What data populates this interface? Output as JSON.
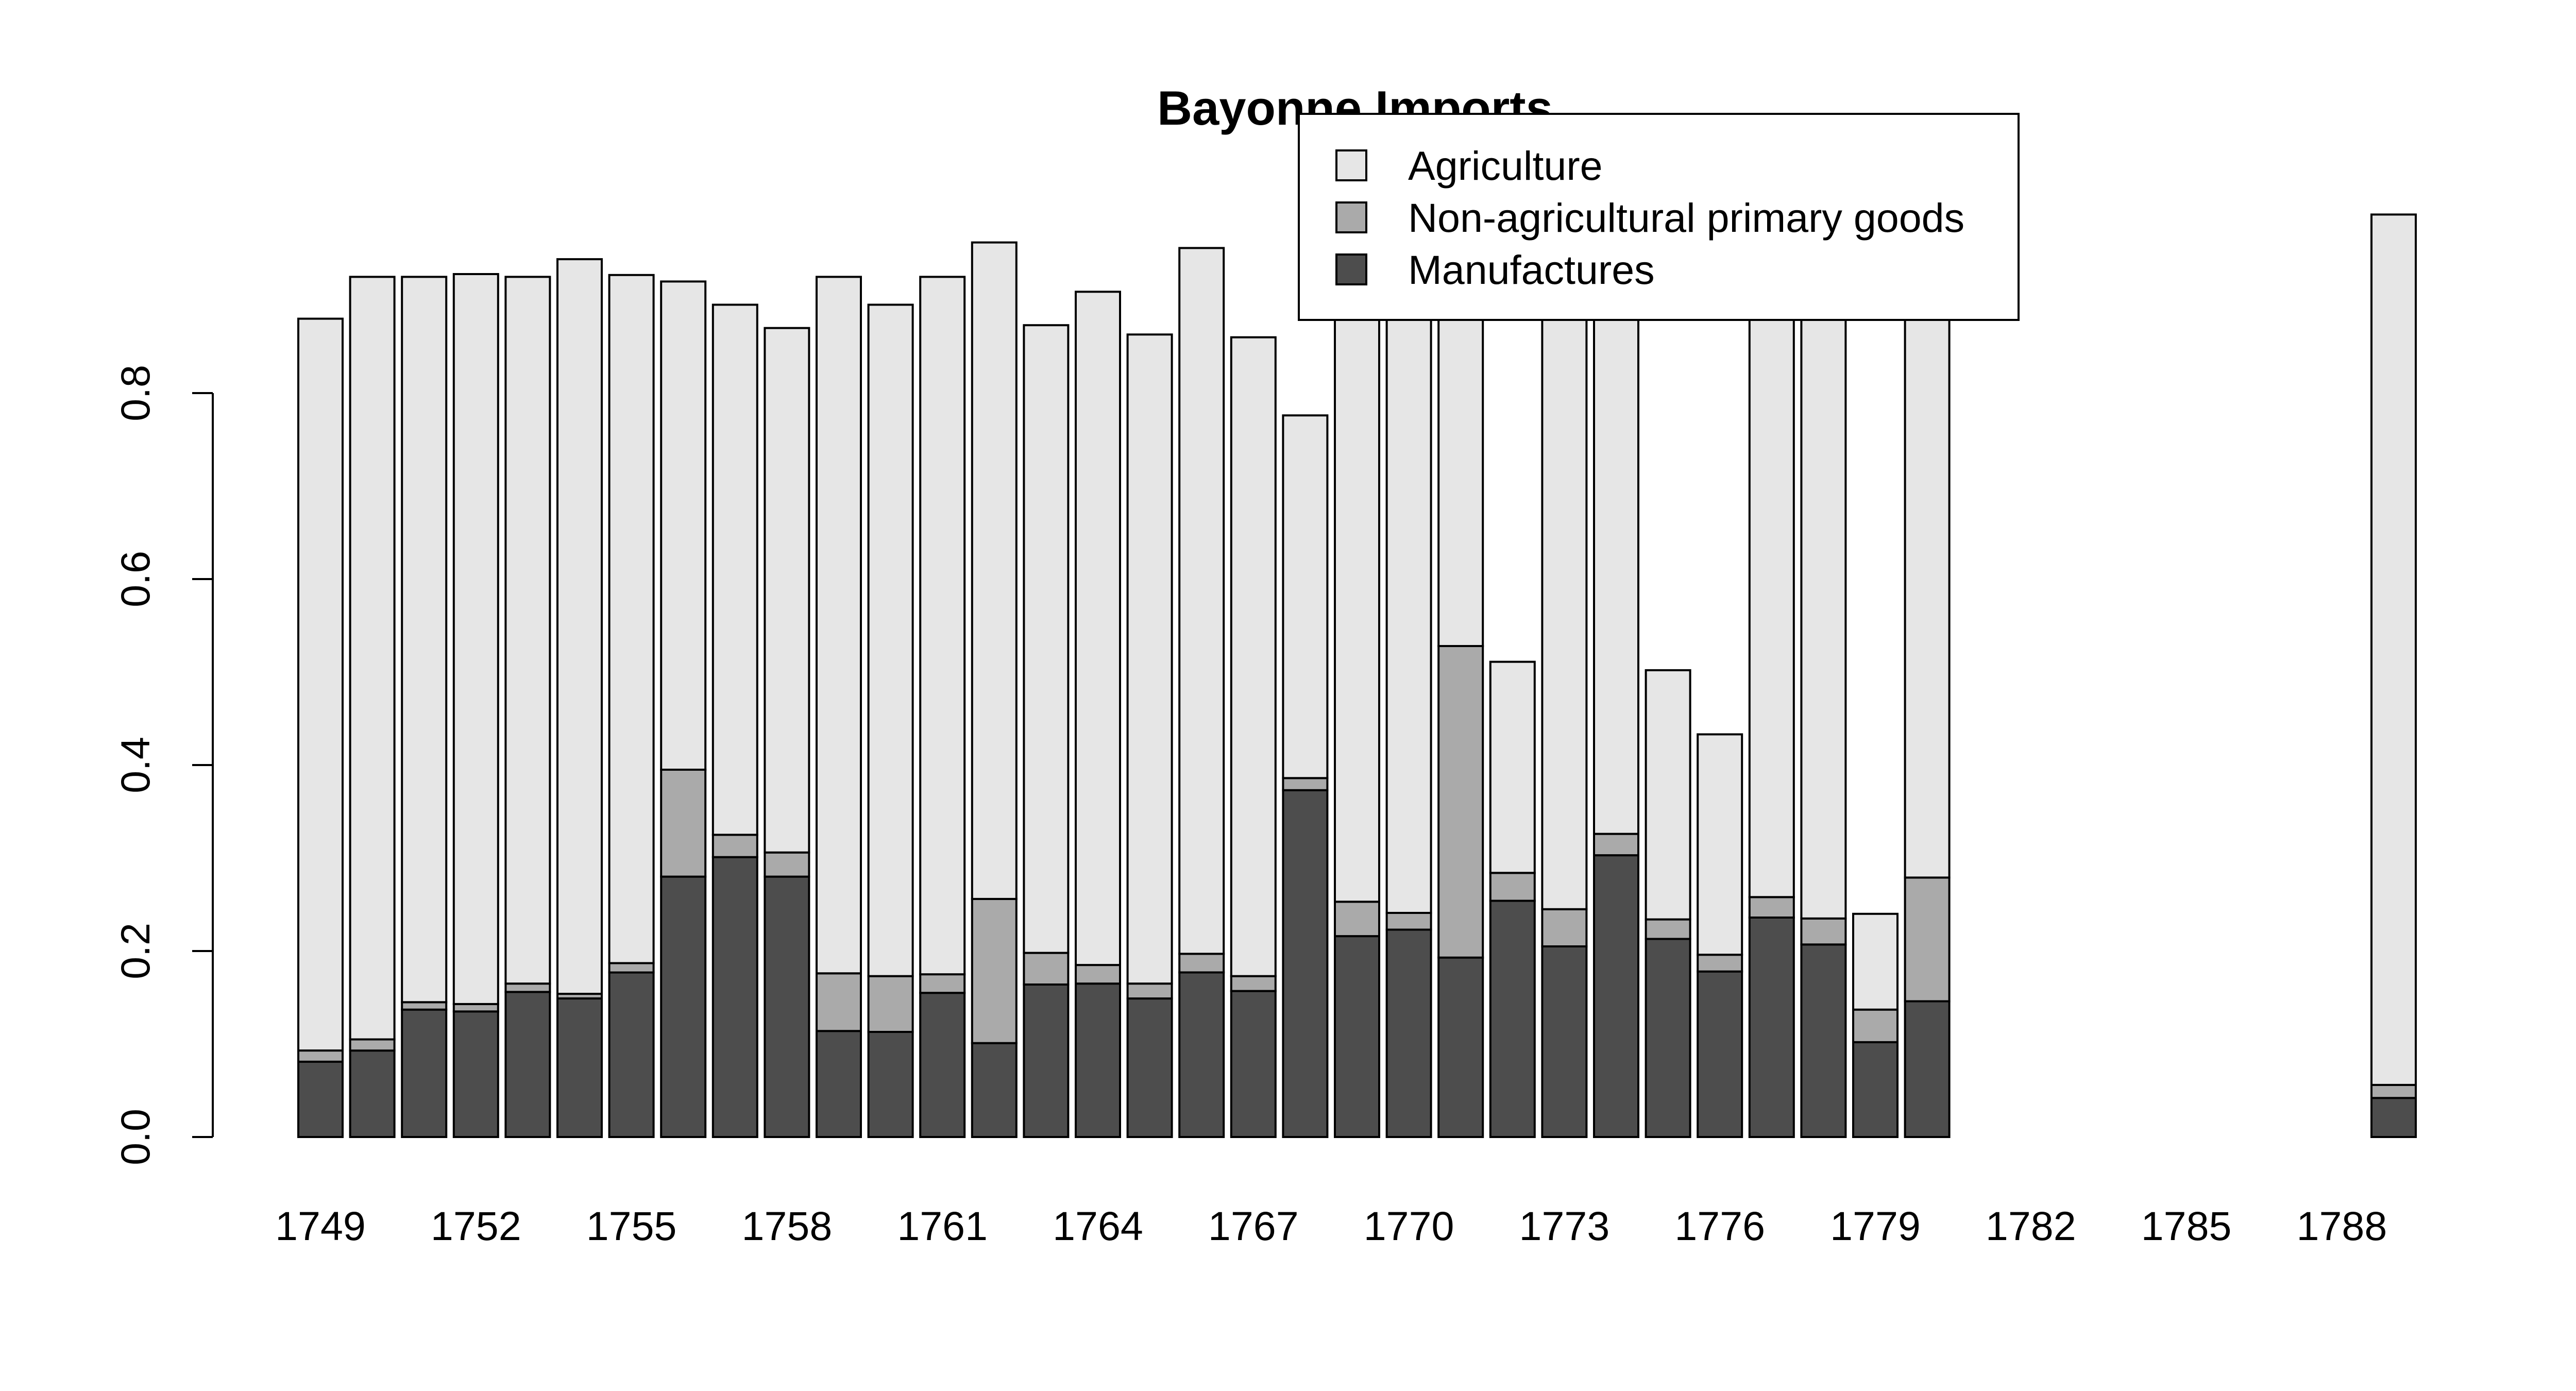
{
  "chart_data": {
    "type": "bar",
    "stacked": true,
    "title": "Bayonne Imports",
    "xlabel": "",
    "ylabel": "",
    "ylim": [
      0,
      1
    ],
    "y_ticks": [
      0.0,
      0.2,
      0.4,
      0.6,
      0.8
    ],
    "y_tick_labels": [
      "0.0",
      "0.2",
      "0.4",
      "0.6",
      "0.8"
    ],
    "x_tick_labels": [
      "1749",
      "1752",
      "1755",
      "1758",
      "1761",
      "1764",
      "1767",
      "1770",
      "1773",
      "1776",
      "1779",
      "1782",
      "1785",
      "1788"
    ],
    "categories": [
      1749,
      1750,
      1751,
      1752,
      1753,
      1754,
      1755,
      1756,
      1757,
      1758,
      1759,
      1760,
      1761,
      1762,
      1763,
      1764,
      1765,
      1766,
      1767,
      1768,
      1769,
      1770,
      1771,
      1772,
      1773,
      1774,
      1775,
      1776,
      1777,
      1778,
      1779,
      1780,
      1781,
      1782,
      1783,
      1784,
      1785,
      1786,
      1787,
      1788,
      1789
    ],
    "grid": false,
    "legend_position": "top-right",
    "series": [
      {
        "name": "Manufactures",
        "color": "#4d4d4d",
        "values": [
          0.081,
          0.093,
          0.137,
          0.135,
          0.156,
          0.149,
          0.177,
          0.28,
          0.301,
          0.28,
          0.114,
          0.113,
          0.155,
          0.101,
          0.164,
          0.165,
          0.149,
          0.177,
          0.157,
          0.373,
          0.216,
          0.223,
          0.193,
          0.254,
          0.205,
          0.303,
          0.213,
          0.178,
          0.236,
          0.207,
          0.102,
          0.146,
          null,
          null,
          null,
          null,
          null,
          null,
          null,
          null,
          0.042
        ]
      },
      {
        "name": "Non-agricultural primary goods",
        "color": "#aaaaaa",
        "values": [
          0.012,
          0.012,
          0.008,
          0.008,
          0.009,
          0.005,
          0.01,
          0.115,
          0.024,
          0.026,
          0.062,
          0.06,
          0.02,
          0.155,
          0.034,
          0.02,
          0.016,
          0.02,
          0.016,
          0.013,
          0.037,
          0.018,
          0.335,
          0.03,
          0.04,
          0.023,
          0.021,
          0.018,
          0.022,
          0.028,
          0.035,
          0.133,
          null,
          null,
          null,
          null,
          null,
          null,
          null,
          null,
          0.014
        ]
      },
      {
        "name": "Agriculture",
        "color": "#e6e6e6",
        "values": [
          0.787,
          0.82,
          0.78,
          0.785,
          0.76,
          0.79,
          0.74,
          0.525,
          0.57,
          0.564,
          0.749,
          0.722,
          0.75,
          0.706,
          0.675,
          0.724,
          0.698,
          0.759,
          0.687,
          0.39,
          0.747,
          0.759,
          0.472,
          0.227,
          0.755,
          0.674,
          0.268,
          0.237,
          0.742,
          0.765,
          0.103,
          0.721,
          null,
          null,
          null,
          null,
          null,
          null,
          null,
          null,
          0.936
        ]
      }
    ],
    "legend_order": [
      "Agriculture",
      "Non-agricultural primary goods",
      "Manufactures"
    ]
  }
}
